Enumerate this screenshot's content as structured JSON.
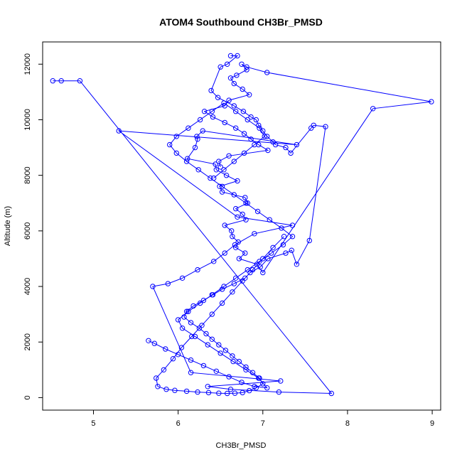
{
  "chart_data": {
    "type": "line",
    "title": "ATOM4 Southbound CH3Br_PMSD",
    "xlabel": "CH3Br_PMSD",
    "ylabel": "Altitude (m)",
    "xlim": [
      4.4,
      9.1
    ],
    "ylim": [
      -450,
      12800
    ],
    "xticks": [
      5,
      6,
      7,
      8,
      9
    ],
    "yticks": [
      0,
      2000,
      4000,
      6000,
      8000,
      10000,
      12000
    ],
    "grid": false,
    "marker": "open-circle",
    "color": "#0000ff",
    "series": [
      {
        "x": [
          4.52,
          4.62,
          4.84,
          7.81,
          7.19,
          6.62,
          6.35,
          7.21,
          6.15,
          5.7,
          5.88,
          6.05,
          6.23,
          6.42,
          6.55,
          6.67,
          6.9,
          7.35,
          6.7,
          5.3,
          7.4,
          6.29,
          6.22,
          6.23,
          6.2,
          6.11,
          6.44,
          6.45,
          6.57,
          6.7,
          6.49,
          6.52,
          6.79,
          6.82,
          6.68,
          6.76,
          6.8,
          6.55,
          6.63,
          6.64,
          6.71,
          6.68,
          6.79,
          6.72,
          6.93,
          7.0,
          8.3,
          8.99,
          7.05,
          6.81,
          6.75,
          6.81,
          6.69,
          6.62,
          6.66,
          6.76,
          6.84,
          6.6,
          6.55,
          6.31,
          6.41,
          6.55,
          6.68,
          6.78,
          6.86,
          6.95,
          7.06,
          6.6,
          6.48,
          6.5
        ],
        "y": [
          11400,
          11400,
          11400,
          150,
          200,
          300,
          400,
          600,
          900,
          4000,
          4100,
          4300,
          4600,
          4900,
          5200,
          5500,
          5900,
          6200,
          6500,
          9600,
          9100,
          9600,
          9400,
          9300,
          9000,
          8600,
          8400,
          8200,
          8000,
          7800,
          7600,
          7400,
          7200,
          7000,
          6800,
          6600,
          6400,
          6200,
          6000,
          5800,
          5600,
          5400,
          5200,
          5000,
          4800,
          4500,
          10400,
          10650,
          11700,
          11900,
          12000,
          11800,
          11600,
          11500,
          11300,
          11100,
          10900,
          10700,
          10500,
          10300,
          10100,
          9900,
          9700,
          9500,
          9300,
          9100,
          8900,
          8700,
          8500,
          8300
        ]
      },
      {
        "x": [
          6.62,
          6.7,
          6.58,
          6.5,
          6.39,
          6.47,
          6.66,
          6.77,
          6.86,
          6.92,
          6.95,
          7.0,
          7.05,
          7.12,
          7.15,
          7.27,
          7.33,
          7.57,
          7.6,
          7.74,
          7.55,
          7.4,
          7.34,
          7.27,
          7.06,
          6.97,
          6.85,
          6.79,
          6.66,
          6.52,
          6.41,
          6.3,
          6.18,
          6.1,
          6.07,
          6.15,
          6.25,
          6.33,
          6.4,
          6.48,
          6.56,
          6.64,
          6.72,
          6.8,
          6.88,
          6.96,
          7.0,
          6.92,
          6.84,
          6.76,
          6.67,
          6.58,
          6.48,
          6.36,
          6.23,
          6.1,
          5.96,
          5.86,
          5.76,
          5.74,
          5.83,
          5.94,
          6.04,
          6.16,
          6.28,
          6.4,
          6.52,
          6.64,
          6.76,
          6.88,
          7.0,
          7.12,
          7.25
        ],
        "y": [
          12300,
          12300,
          12000,
          11900,
          11050,
          10800,
          10500,
          10300,
          10100,
          10000,
          9800,
          9600,
          9400,
          9200,
          9100,
          9000,
          8800,
          9700,
          9800,
          9750,
          5650,
          4800,
          5300,
          5200,
          5000,
          4700,
          4500,
          4300,
          4100,
          3900,
          3700,
          3500,
          3300,
          3100,
          2900,
          2700,
          2500,
          2300,
          2100,
          1900,
          1700,
          1500,
          1300,
          1100,
          900,
          700,
          500,
          350,
          250,
          180,
          160,
          150,
          160,
          180,
          200,
          230,
          260,
          300,
          400,
          700,
          1000,
          1400,
          1800,
          2200,
          2600,
          3000,
          3400,
          3800,
          4200,
          4600,
          5000,
          5400,
          5800
        ]
      },
      {
        "x": [
          5.65,
          5.72,
          5.85,
          6.0,
          6.15,
          6.3,
          6.45,
          6.6,
          6.75,
          6.9,
          7.05,
          6.95,
          6.8,
          6.65,
          6.5,
          6.35,
          6.2,
          6.05,
          6.0,
          6.12,
          6.26,
          6.4,
          6.54,
          6.68,
          6.82,
          6.96,
          7.1,
          7.24,
          7.35,
          7.22,
          7.08,
          6.94,
          6.8,
          6.66,
          6.52,
          6.38,
          6.24,
          6.1,
          5.98,
          5.9,
          5.98,
          6.12,
          6.26,
          6.4,
          6.54,
          6.68,
          6.82,
          6.96,
          7.02,
          6.9,
          6.78,
          6.66,
          6.54,
          6.42
        ],
        "y": [
          2050,
          1950,
          1750,
          1550,
          1350,
          1150,
          950,
          750,
          550,
          400,
          350,
          700,
          1000,
          1300,
          1600,
          1900,
          2200,
          2500,
          2800,
          3100,
          3400,
          3700,
          4000,
          4300,
          4600,
          4900,
          5200,
          5500,
          5800,
          6100,
          6400,
          6700,
          7000,
          7300,
          7600,
          7900,
          8200,
          8500,
          8800,
          9100,
          9400,
          9700,
          10000,
          10300,
          10600,
          10300,
          10000,
          9700,
          9400,
          9100,
          8800,
          8500,
          8200,
          7900
        ]
      }
    ]
  }
}
